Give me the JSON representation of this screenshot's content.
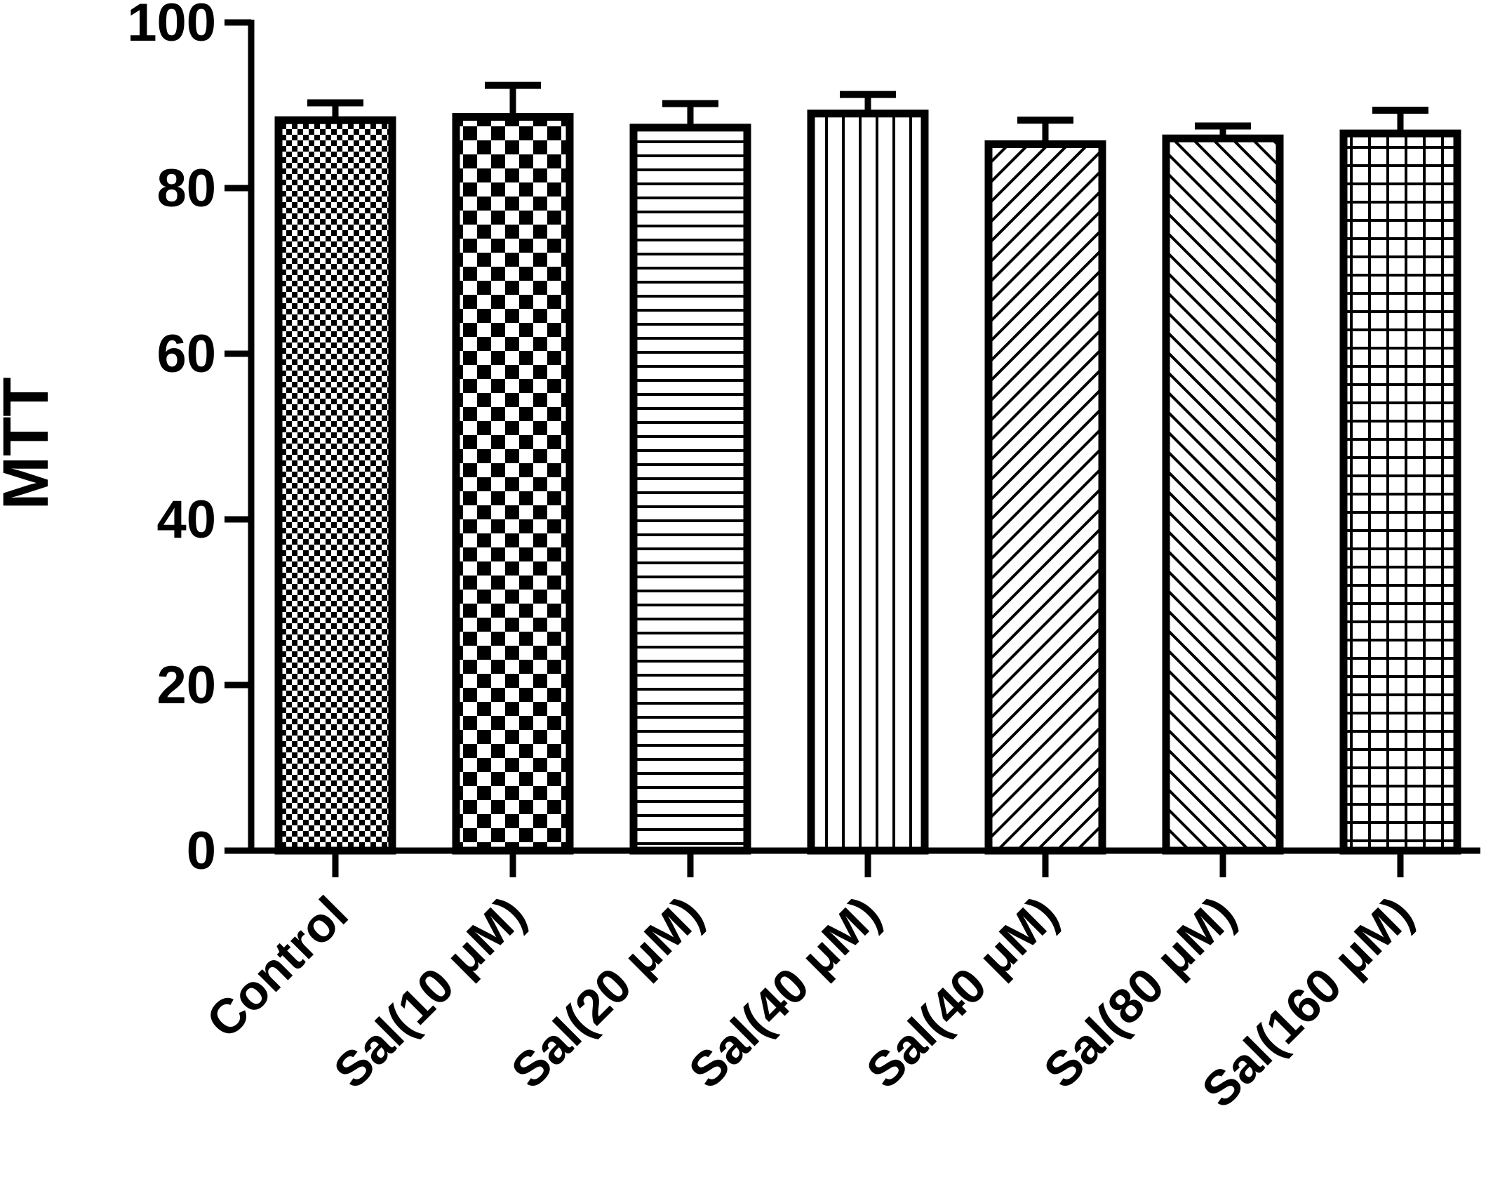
{
  "chart_data": {
    "type": "bar",
    "title": "",
    "xlabel": "",
    "ylabel": "MTT",
    "ylim": [
      0,
      100
    ],
    "yticks": [
      "0",
      "20",
      "40",
      "60",
      "80",
      "100"
    ],
    "grid": false,
    "legend": "none",
    "categories": [
      "Control",
      "Sal(10 μM)",
      "Sal(20 μM)",
      "Sal(40 μM)",
      "Sal(40 μM)",
      "Sal(80 μM)",
      "Sal(160 μM)"
    ],
    "values": [
      88.2,
      88.6,
      87.3,
      89.0,
      85.3,
      86.0,
      86.6
    ],
    "errors": [
      2.1,
      3.8,
      2.9,
      2.3,
      2.9,
      1.5,
      2.8
    ],
    "patterns": [
      "fine-checker",
      "large-checker",
      "horizontal-lines",
      "vertical-lines",
      "diagonal-up",
      "diagonal-down",
      "grid"
    ],
    "colors": {
      "ink": "#000000",
      "background": "#ffffff"
    }
  }
}
